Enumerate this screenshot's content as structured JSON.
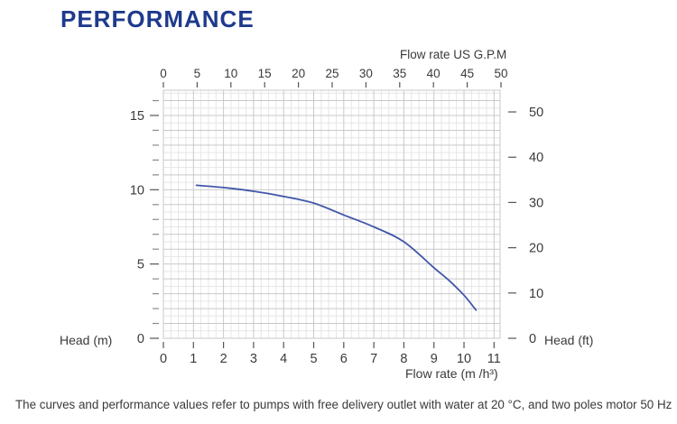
{
  "title": "PERFORMANCE",
  "colors": {
    "title_blue": "#1e3a8c",
    "curve_blue": "#4156a8",
    "grid_minor": "#e6e6e6",
    "grid_major": "#c9c9c9",
    "axis_text": "#3a3a3a",
    "tick": "#555555"
  },
  "footer": "The curves and performance values refer to pumps with free delivery outlet with water at 20 °C, and two poles motor 50 Hz",
  "chart_data": {
    "type": "line",
    "title": "",
    "grid": "on",
    "legend": "none",
    "axes": {
      "top": {
        "label": "Flow rate US G.P.M",
        "unit": "US GPM",
        "ticks": [
          0,
          5,
          10,
          15,
          20,
          25,
          30,
          35,
          40,
          45,
          50
        ],
        "range": [
          0,
          50
        ]
      },
      "bottom": {
        "label": "Flow rate (m /h³)",
        "unit": "m³/h",
        "ticks": [
          0,
          1,
          2,
          3,
          4,
          5,
          6,
          7,
          8,
          9,
          10,
          11
        ],
        "range": [
          0,
          11.2
        ]
      },
      "left": {
        "label": "Head (m)",
        "unit": "m",
        "ticks": [
          0,
          5,
          10,
          15
        ],
        "minor_tick_step": 1,
        "range": [
          0,
          16.7
        ]
      },
      "right": {
        "label": "Head (ft)",
        "unit": "ft",
        "ticks": [
          0,
          10,
          20,
          30,
          40,
          50
        ],
        "range": [
          0,
          54.8
        ]
      }
    },
    "series": [
      {
        "name": "pump-head-curve",
        "color": "#4156a8",
        "x_unit": "m³/h",
        "y_unit": "m",
        "points": [
          [
            1.1,
            10.3
          ],
          [
            2.0,
            10.15
          ],
          [
            3.0,
            9.9
          ],
          [
            4.0,
            9.55
          ],
          [
            5.0,
            9.1
          ],
          [
            6.0,
            8.3
          ],
          [
            7.0,
            7.5
          ],
          [
            8.0,
            6.5
          ],
          [
            9.0,
            4.75
          ],
          [
            9.5,
            3.9
          ],
          [
            10.0,
            2.9
          ],
          [
            10.4,
            1.9
          ]
        ]
      }
    ]
  }
}
